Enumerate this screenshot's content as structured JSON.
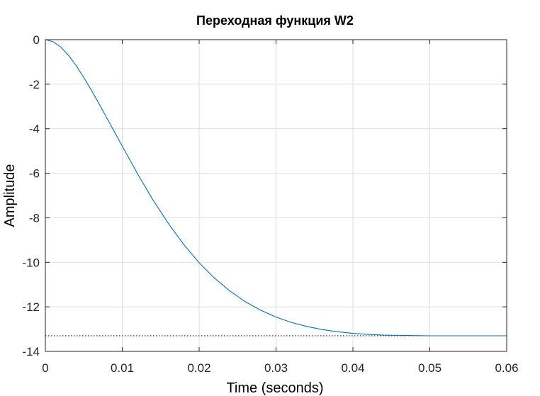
{
  "chart_data": {
    "type": "line",
    "title": "Переходная функция W2",
    "xlabel": "Time (seconds)",
    "ylabel": "Amplitude",
    "xlim": [
      0,
      0.06
    ],
    "ylim": [
      -14,
      0
    ],
    "xticks": [
      0,
      0.01,
      0.02,
      0.03,
      0.04,
      0.05,
      0.06
    ],
    "xtick_labels": [
      "0",
      "0.01",
      "0.02",
      "0.03",
      "0.04",
      "0.05",
      "0.06"
    ],
    "yticks": [
      0,
      -2,
      -4,
      -6,
      -8,
      -10,
      -12,
      -14
    ],
    "ytick_labels": [
      "0",
      "-2",
      "-4",
      "-6",
      "-8",
      "-10",
      "-12",
      "-14"
    ],
    "grid": true,
    "series": [
      {
        "color": "#0072BD",
        "x": [
          0,
          0.001,
          0.002,
          0.003,
          0.004,
          0.005,
          0.006,
          0.007,
          0.008,
          0.009,
          0.01,
          0.012,
          0.014,
          0.016,
          0.018,
          0.02,
          0.022,
          0.024,
          0.026,
          0.028,
          0.03,
          0.032,
          0.034,
          0.036,
          0.038,
          0.04,
          0.042,
          0.044,
          0.046,
          0.048,
          0.05,
          0.052,
          0.054,
          0.056,
          0.058,
          0.06
        ],
        "y": [
          0,
          -0.09,
          -0.33,
          -0.7,
          -1.16,
          -1.7,
          -2.28,
          -2.89,
          -3.52,
          -4.15,
          -4.78,
          -6.03,
          -7.2,
          -8.26,
          -9.2,
          -10.02,
          -10.71,
          -11.29,
          -11.77,
          -12.15,
          -12.46,
          -12.7,
          -12.88,
          -13.02,
          -13.12,
          -13.19,
          -13.24,
          -13.27,
          -13.28,
          -13.29,
          -13.3,
          -13.3,
          -13.3,
          -13.3,
          -13.3,
          -13.3
        ]
      }
    ],
    "steady_state": {
      "value": -13.3,
      "style": "dotted",
      "color": "#000000"
    }
  }
}
